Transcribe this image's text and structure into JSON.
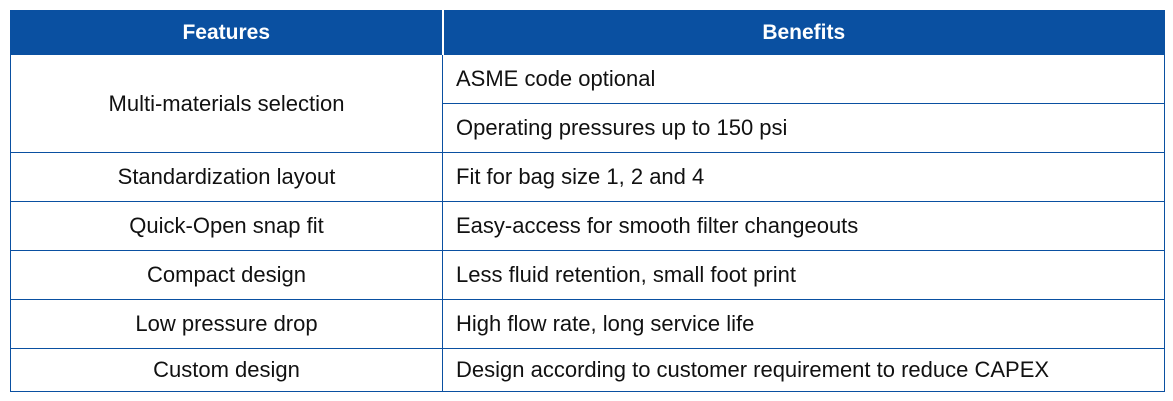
{
  "table": {
    "headers": {
      "features": "Features",
      "benefits": "Benefits"
    },
    "rows": [
      {
        "feature": "Multi-materials selection",
        "benefits": [
          "ASME code optional",
          "Operating pressures up to 150 psi"
        ]
      },
      {
        "feature": "Standardization layout",
        "benefits": [
          "Fit for bag size 1, 2 and 4"
        ]
      },
      {
        "feature": "Quick-Open snap fit",
        "benefits": [
          "Easy-access for smooth filter changeouts"
        ]
      },
      {
        "feature": "Compact design",
        "benefits": [
          "Less fluid retention, small foot print"
        ]
      },
      {
        "feature": "Low pressure drop",
        "benefits": [
          "High flow rate, long service life"
        ]
      },
      {
        "feature": "Custom design",
        "benefits": [
          "Design according to customer requirement to reduce CAPEX"
        ]
      }
    ],
    "colors": {
      "header_bg": "#0a50a1",
      "header_text": "#ffffff",
      "border": "#0a50a1"
    }
  }
}
